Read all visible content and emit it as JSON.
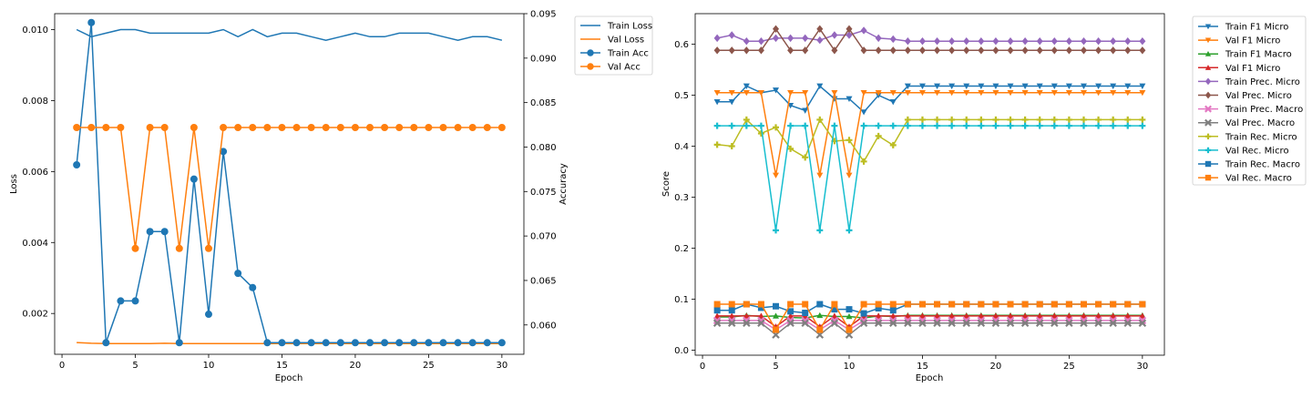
{
  "chart_data": [
    {
      "type": "line",
      "xlabel": "Epoch",
      "ylabel": "Loss",
      "y2label": "Accuracy",
      "xlim": [
        -0.5,
        31.5
      ],
      "ylim": [
        0.00085,
        0.01045
      ],
      "y2lim": [
        0.0567,
        0.095
      ],
      "xticks": [
        0,
        5,
        10,
        15,
        20,
        25,
        30
      ],
      "xtick_labels": [
        "0",
        "5",
        "10",
        "15",
        "20",
        "25",
        "30"
      ],
      "yticks": [
        0.002,
        0.004,
        0.006,
        0.008,
        0.01
      ],
      "ytick_labels": [
        "0.002",
        "0.004",
        "0.006",
        "0.008",
        "0.010"
      ],
      "y2ticks": [
        0.06,
        0.065,
        0.07,
        0.075,
        0.08,
        0.085,
        0.09,
        0.095
      ],
      "y2tick_labels": [
        "0.060",
        "0.065",
        "0.070",
        "0.075",
        "0.080",
        "0.085",
        "0.090",
        "0.095"
      ],
      "legend_position": "outside-right",
      "x": [
        1,
        2,
        3,
        4,
        5,
        6,
        7,
        8,
        9,
        10,
        11,
        12,
        13,
        14,
        15,
        16,
        17,
        18,
        19,
        20,
        21,
        22,
        23,
        24,
        25,
        26,
        27,
        28,
        29,
        30
      ],
      "series": [
        {
          "name": "Train Loss",
          "axis": "left",
          "color": "#1f77b4",
          "marker": "none",
          "values": [
            0.01,
            0.0098,
            0.0099,
            0.01,
            0.01,
            0.0099,
            0.0099,
            0.0099,
            0.0099,
            0.0099,
            0.01,
            0.0098,
            0.01,
            0.0098,
            0.0099,
            0.0099,
            0.0098,
            0.0097,
            0.0098,
            0.0099,
            0.0098,
            0.0098,
            0.0099,
            0.0099,
            0.0099,
            0.0098,
            0.0097,
            0.0098,
            0.0098,
            0.0097
          ]
        },
        {
          "name": "Val Loss",
          "axis": "left",
          "color": "#ff7f0e",
          "marker": "none",
          "values": [
            0.00118,
            0.00116,
            0.00115,
            0.00115,
            0.00115,
            0.00115,
            0.00116,
            0.00115,
            0.00115,
            0.00115,
            0.00115,
            0.00115,
            0.00115,
            0.00115,
            0.00115,
            0.00115,
            0.00115,
            0.00115,
            0.00115,
            0.00115,
            0.00115,
            0.00115,
            0.00115,
            0.00115,
            0.00115,
            0.00115,
            0.00115,
            0.00115,
            0.00115,
            0.00115
          ]
        },
        {
          "name": "Train Acc",
          "axis": "right",
          "color": "#1f77b4",
          "marker": "circle",
          "values": [
            0.078,
            0.094,
            0.058,
            0.0627,
            0.0627,
            0.0705,
            0.0705,
            0.058,
            0.0764,
            0.0612,
            0.0795,
            0.0658,
            0.0642,
            0.058,
            0.058,
            0.058,
            0.058,
            0.058,
            0.058,
            0.058,
            0.058,
            0.058,
            0.058,
            0.058,
            0.058,
            0.058,
            0.058,
            0.058,
            0.058,
            0.058
          ]
        },
        {
          "name": "Val Acc",
          "axis": "right",
          "color": "#ff7f0e",
          "marker": "circle",
          "values": [
            0.0822,
            0.0822,
            0.0822,
            0.0822,
            0.0686,
            0.0822,
            0.0822,
            0.0686,
            0.0822,
            0.0686,
            0.0822,
            0.0822,
            0.0822,
            0.0822,
            0.0822,
            0.0822,
            0.0822,
            0.0822,
            0.0822,
            0.0822,
            0.0822,
            0.0822,
            0.0822,
            0.0822,
            0.0822,
            0.0822,
            0.0822,
            0.0822,
            0.0822,
            0.0822
          ]
        }
      ]
    },
    {
      "type": "line",
      "xlabel": "Epoch",
      "ylabel": "Score",
      "xlim": [
        -0.5,
        31.5
      ],
      "ylim": [
        -0.01,
        0.66
      ],
      "xticks": [
        0,
        5,
        10,
        15,
        20,
        25,
        30
      ],
      "xtick_labels": [
        "0",
        "5",
        "10",
        "15",
        "20",
        "25",
        "30"
      ],
      "yticks": [
        0.0,
        0.1,
        0.2,
        0.3,
        0.4,
        0.5,
        0.6
      ],
      "ytick_labels": [
        "0.0",
        "0.1",
        "0.2",
        "0.3",
        "0.4",
        "0.5",
        "0.6"
      ],
      "legend_position": "outside-right",
      "x": [
        1,
        2,
        3,
        4,
        5,
        6,
        7,
        8,
        9,
        10,
        11,
        12,
        13,
        14,
        15,
        16,
        17,
        18,
        19,
        20,
        21,
        22,
        23,
        24,
        25,
        26,
        27,
        28,
        29,
        30
      ],
      "series": [
        {
          "name": "Train F1 Micro",
          "color": "#1f77b4",
          "marker": "tri-down",
          "values": [
            0.487,
            0.487,
            0.518,
            0.505,
            0.51,
            0.48,
            0.47,
            0.518,
            0.493,
            0.493,
            0.467,
            0.5,
            0.487,
            0.518,
            0.518,
            0.518,
            0.518,
            0.518,
            0.518,
            0.518,
            0.518,
            0.518,
            0.518,
            0.518,
            0.518,
            0.518,
            0.518,
            0.518,
            0.518,
            0.518
          ]
        },
        {
          "name": "Val F1 Micro",
          "color": "#ff7f0e",
          "marker": "tri-down",
          "values": [
            0.505,
            0.505,
            0.505,
            0.505,
            0.343,
            0.505,
            0.505,
            0.343,
            0.505,
            0.343,
            0.505,
            0.505,
            0.505,
            0.505,
            0.505,
            0.505,
            0.505,
            0.505,
            0.505,
            0.505,
            0.505,
            0.505,
            0.505,
            0.505,
            0.505,
            0.505,
            0.505,
            0.505,
            0.505,
            0.505
          ]
        },
        {
          "name": "Train F1 Macro",
          "color": "#2ca02c",
          "marker": "tri-up",
          "values": [
            0.065,
            0.065,
            0.068,
            0.066,
            0.067,
            0.064,
            0.063,
            0.068,
            0.066,
            0.066,
            0.063,
            0.067,
            0.066,
            0.068,
            0.068,
            0.068,
            0.068,
            0.068,
            0.068,
            0.068,
            0.068,
            0.068,
            0.068,
            0.068,
            0.068,
            0.068,
            0.068,
            0.068,
            0.068,
            0.068
          ]
        },
        {
          "name": "Val F1 Micro",
          "color": "#d62728",
          "marker": "tri-up",
          "values": [
            0.067,
            0.067,
            0.067,
            0.067,
            0.046,
            0.067,
            0.067,
            0.046,
            0.067,
            0.046,
            0.067,
            0.067,
            0.067,
            0.067,
            0.067,
            0.067,
            0.067,
            0.067,
            0.067,
            0.067,
            0.067,
            0.067,
            0.067,
            0.067,
            0.067,
            0.067,
            0.067,
            0.067,
            0.067,
            0.067
          ]
        },
        {
          "name": "Train Prec. Micro",
          "color": "#9467bd",
          "marker": "diamond",
          "values": [
            0.612,
            0.618,
            0.606,
            0.606,
            0.612,
            0.612,
            0.612,
            0.608,
            0.618,
            0.618,
            0.627,
            0.612,
            0.61,
            0.606,
            0.606,
            0.606,
            0.606,
            0.606,
            0.606,
            0.606,
            0.606,
            0.606,
            0.606,
            0.606,
            0.606,
            0.606,
            0.606,
            0.606,
            0.606,
            0.606
          ]
        },
        {
          "name": "Val Prec. Micro",
          "color": "#8c564b",
          "marker": "diamond",
          "values": [
            0.588,
            0.588,
            0.588,
            0.588,
            0.63,
            0.588,
            0.588,
            0.63,
            0.588,
            0.63,
            0.588,
            0.588,
            0.588,
            0.588,
            0.588,
            0.588,
            0.588,
            0.588,
            0.588,
            0.588,
            0.588,
            0.588,
            0.588,
            0.588,
            0.588,
            0.588,
            0.588,
            0.588,
            0.588,
            0.588
          ]
        },
        {
          "name": "Train Prec. Macro",
          "color": "#e377c2",
          "marker": "x",
          "values": [
            0.058,
            0.058,
            0.058,
            0.058,
            0.04,
            0.058,
            0.058,
            0.04,
            0.058,
            0.04,
            0.058,
            0.058,
            0.058,
            0.058,
            0.058,
            0.058,
            0.058,
            0.058,
            0.058,
            0.058,
            0.058,
            0.058,
            0.058,
            0.058,
            0.058,
            0.058,
            0.058,
            0.058,
            0.058,
            0.058
          ]
        },
        {
          "name": "Val Prec. Macro",
          "color": "#7f7f7f",
          "marker": "x",
          "values": [
            0.053,
            0.053,
            0.053,
            0.053,
            0.03,
            0.053,
            0.053,
            0.03,
            0.053,
            0.03,
            0.053,
            0.053,
            0.053,
            0.053,
            0.053,
            0.053,
            0.053,
            0.053,
            0.053,
            0.053,
            0.053,
            0.053,
            0.053,
            0.053,
            0.053,
            0.053,
            0.053,
            0.053,
            0.053,
            0.053
          ]
        },
        {
          "name": "Train Rec. Micro",
          "color": "#bcbd22",
          "marker": "plus",
          "values": [
            0.403,
            0.4,
            0.452,
            0.425,
            0.437,
            0.395,
            0.378,
            0.452,
            0.41,
            0.412,
            0.37,
            0.42,
            0.402,
            0.452,
            0.452,
            0.452,
            0.452,
            0.452,
            0.452,
            0.452,
            0.452,
            0.452,
            0.452,
            0.452,
            0.452,
            0.452,
            0.452,
            0.452,
            0.452,
            0.452
          ]
        },
        {
          "name": "Val Rec. Micro",
          "color": "#17becf",
          "marker": "plus",
          "values": [
            0.44,
            0.44,
            0.44,
            0.44,
            0.235,
            0.44,
            0.44,
            0.235,
            0.44,
            0.235,
            0.44,
            0.44,
            0.44,
            0.44,
            0.44,
            0.44,
            0.44,
            0.44,
            0.44,
            0.44,
            0.44,
            0.44,
            0.44,
            0.44,
            0.44,
            0.44,
            0.44,
            0.44,
            0.44,
            0.44
          ]
        },
        {
          "name": "Train Rec. Macro",
          "color": "#1f77b4",
          "marker": "square",
          "values": [
            0.078,
            0.078,
            0.09,
            0.083,
            0.086,
            0.076,
            0.073,
            0.09,
            0.08,
            0.08,
            0.072,
            0.082,
            0.078,
            0.09,
            0.09,
            0.09,
            0.09,
            0.09,
            0.09,
            0.09,
            0.09,
            0.09,
            0.09,
            0.09,
            0.09,
            0.09,
            0.09,
            0.09,
            0.09,
            0.09
          ]
        },
        {
          "name": "Val Rec. Macro",
          "color": "#ff7f0e",
          "marker": "square",
          "values": [
            0.09,
            0.09,
            0.09,
            0.09,
            0.04,
            0.09,
            0.09,
            0.04,
            0.09,
            0.04,
            0.09,
            0.09,
            0.09,
            0.09,
            0.09,
            0.09,
            0.09,
            0.09,
            0.09,
            0.09,
            0.09,
            0.09,
            0.09,
            0.09,
            0.09,
            0.09,
            0.09,
            0.09,
            0.09,
            0.09
          ]
        }
      ]
    }
  ]
}
